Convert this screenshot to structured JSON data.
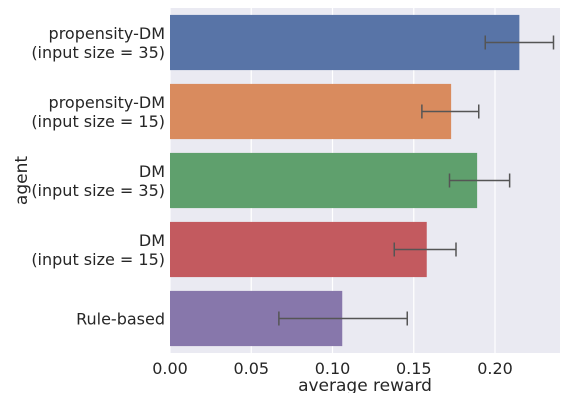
{
  "chart_data": {
    "type": "bar",
    "orientation": "horizontal",
    "xlabel": "average reward",
    "ylabel": "agent",
    "xlim": [
      0.0,
      0.24
    ],
    "x_ticks": [
      "0.00",
      "0.05",
      "0.10",
      "0.15",
      "0.20"
    ],
    "grid": true,
    "categories": [
      [
        "propensity-DM",
        "(input size = 35)"
      ],
      [
        "propensity-DM",
        "(input size = 15)"
      ],
      [
        "DM",
        "(input size = 35)"
      ],
      [
        "DM",
        "(input size = 15)"
      ],
      [
        "Rule-based"
      ]
    ],
    "values": [
      0.215,
      0.173,
      0.189,
      0.158,
      0.106
    ],
    "error_low": [
      0.194,
      0.155,
      0.172,
      0.138,
      0.067
    ],
    "error_high": [
      0.236,
      0.19,
      0.209,
      0.176,
      0.146
    ],
    "colors": [
      "#5874a7",
      "#d98b5e",
      "#5fa06d",
      "#c35a5f",
      "#8777ab"
    ],
    "background_color": "#eaeaf2"
  }
}
